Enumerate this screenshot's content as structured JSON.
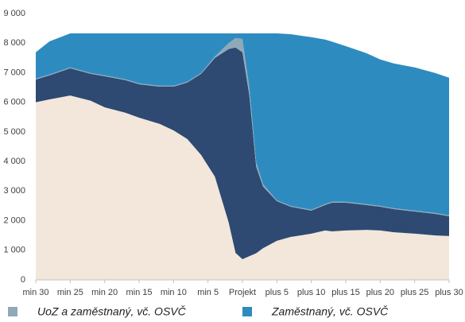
{
  "chart_data": {
    "type": "area",
    "stacked": true,
    "x": [
      -30,
      -28,
      -25,
      -22,
      -20,
      -17,
      -15,
      -12,
      -10,
      -8,
      -6,
      -4,
      -2,
      -1,
      0,
      1,
      2,
      3,
      5,
      7,
      10,
      12,
      13,
      15,
      18,
      20,
      22,
      25,
      28,
      30
    ],
    "xlim": [
      -30,
      30
    ],
    "xticks": [
      {
        "value": -30,
        "label": "min 30"
      },
      {
        "value": -25,
        "label": "min 25"
      },
      {
        "value": -20,
        "label": "min 20"
      },
      {
        "value": -15,
        "label": "min 15"
      },
      {
        "value": -10,
        "label": "min 10"
      },
      {
        "value": -5,
        "label": "min 5"
      },
      {
        "value": 0,
        "label": "Projekt"
      },
      {
        "value": 5,
        "label": "plus 5"
      },
      {
        "value": 10,
        "label": "plus 10"
      },
      {
        "value": 15,
        "label": "plus 15"
      },
      {
        "value": 20,
        "label": "plus 20"
      },
      {
        "value": 25,
        "label": "plus 25"
      },
      {
        "value": 30,
        "label": "plus 30"
      }
    ],
    "ylim": [
      0,
      9000
    ],
    "yticks": [
      0,
      {
        "value": 1000,
        "label": "1 000"
      },
      {
        "value": 2000,
        "label": "2 000"
      },
      {
        "value": 3000,
        "label": "3 000"
      },
      {
        "value": 4000,
        "label": "4 000"
      },
      {
        "value": 5000,
        "label": "5 000"
      },
      {
        "value": 6000,
        "label": "6 000"
      },
      {
        "value": 7000,
        "label": "7 000"
      },
      {
        "value": 8000,
        "label": "8 000"
      },
      {
        "value": 9000,
        "label": "9 000"
      }
    ],
    "grid": false,
    "legend": "bottom",
    "series": [
      {
        "color": "#f3e7db",
        "values": [
          6000,
          6100,
          6230,
          6050,
          5830,
          5650,
          5480,
          5270,
          5050,
          4760,
          4220,
          3490,
          1940,
          910,
          700,
          800,
          900,
          1070,
          1320,
          1450,
          1560,
          1670,
          1640,
          1670,
          1690,
          1670,
          1610,
          1560,
          1500,
          1480
        ]
      },
      {
        "color": "#2e4a72",
        "values": [
          770,
          810,
          920,
          910,
          1050,
          1100,
          1130,
          1260,
          1480,
          1910,
          2740,
          4010,
          5860,
          6940,
          6990,
          5440,
          2920,
          2080,
          1340,
          1020,
          780,
          860,
          970,
          940,
          840,
          800,
          780,
          750,
          730,
          670
        ]
      },
      {
        "name": "UoZ a zaměstnaný, vč. OSVČ",
        "color": "#8fa9b9",
        "values": [
          30,
          30,
          30,
          30,
          30,
          30,
          30,
          30,
          30,
          30,
          30,
          50,
          200,
          320,
          450,
          250,
          150,
          80,
          30,
          30,
          30,
          30,
          30,
          30,
          30,
          30,
          30,
          30,
          30,
          30
        ]
      },
      {
        "name": "Zaměstnaný, vč. OSVČ",
        "color": "#2e8bc0",
        "values": [
          890,
          1120,
          1150,
          1340,
          1420,
          1550,
          1690,
          1770,
          1770,
          1630,
          1340,
          780,
          330,
          160,
          190,
          1840,
          4360,
          5100,
          5640,
          5800,
          5830,
          5560,
          5410,
          5260,
          5100,
          4950,
          4890,
          4840,
          4730,
          4650
        ]
      }
    ]
  }
}
